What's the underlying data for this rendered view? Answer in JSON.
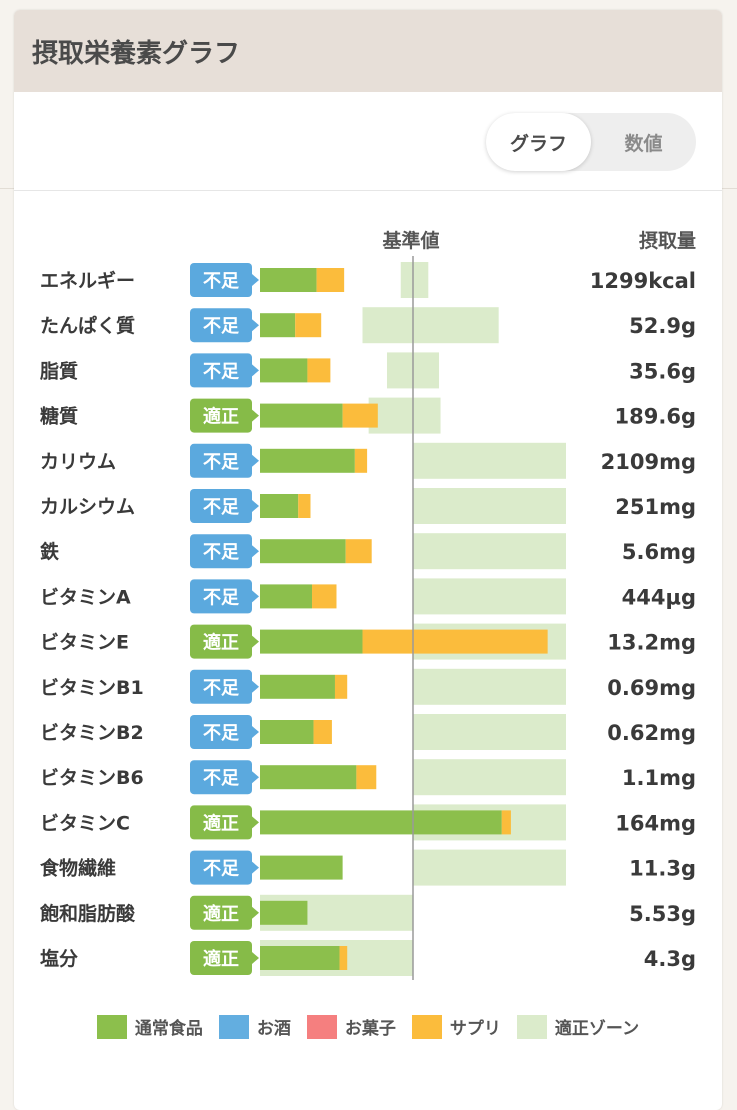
{
  "header": {
    "title": "摂取栄養素グラフ"
  },
  "toggle": {
    "graph_label": "グラフ",
    "value_label": "数値"
  },
  "chart_data": {
    "type": "bar",
    "orientation": "horizontal",
    "stacked": true,
    "reference_label": "基準値",
    "intake_header": "摂取量",
    "units": "percent of reference value",
    "categories": [
      "エネルギー",
      "たんぱく質",
      "脂質",
      "糖質",
      "カリウム",
      "カルシウム",
      "鉄",
      "ビタミンA",
      "ビタミンE",
      "ビタミンB1",
      "ビタミンB2",
      "ビタミンB6",
      "ビタミンC",
      "食物繊維",
      "飽和脂肪酸",
      "塩分"
    ],
    "status": [
      "不足",
      "不足",
      "不足",
      "適正",
      "不足",
      "不足",
      "不足",
      "不足",
      "適正",
      "不足",
      "不足",
      "不足",
      "適正",
      "不足",
      "適正",
      "適正"
    ],
    "intake": [
      "1299kcal",
      "52.9g",
      "35.6g",
      "189.6g",
      "2109mg",
      "251mg",
      "5.6mg",
      "444µg",
      "13.2mg",
      "0.69mg",
      "0.62mg",
      "1.1mg",
      "164mg",
      "11.3g",
      "5.53g",
      "4.3g"
    ],
    "series": [
      {
        "name": "通常食品",
        "values": [
          37,
          23,
          31,
          54,
          62,
          25,
          56,
          34,
          67,
          49,
          35,
          63,
          158,
          54,
          31,
          52
        ]
      },
      {
        "name": "お酒",
        "values": [
          0,
          0,
          0,
          0,
          0,
          0,
          0,
          0,
          0,
          0,
          0,
          0,
          0,
          0,
          0,
          0
        ]
      },
      {
        "name": "お菓子",
        "values": [
          0,
          0,
          0,
          0,
          0,
          0,
          0,
          0,
          0,
          0,
          0,
          0,
          0,
          0,
          0,
          0
        ]
      },
      {
        "name": "サプリ",
        "values": [
          18,
          17,
          15,
          23,
          8,
          8,
          17,
          16,
          121,
          8,
          12,
          13,
          6,
          0,
          0,
          5
        ]
      }
    ],
    "optimal_zone": [
      [
        92,
        110
      ],
      [
        67,
        156
      ],
      [
        83,
        117
      ],
      [
        71,
        118
      ],
      [
        100,
        200
      ],
      [
        100,
        200
      ],
      [
        100,
        200
      ],
      [
        100,
        200
      ],
      [
        100,
        200
      ],
      [
        100,
        200
      ],
      [
        100,
        200
      ],
      [
        100,
        200
      ],
      [
        100,
        200
      ],
      [
        100,
        200
      ],
      [
        0,
        100
      ],
      [
        0,
        100
      ]
    ],
    "xlim": [
      0,
      200
    ],
    "legend": [
      "通常食品",
      "お酒",
      "お菓子",
      "サプリ",
      "適正ゾーン"
    ],
    "legend_position": "bottom",
    "colors": {
      "通常食品": "#8cbf4c",
      "お酒": "#63aee0",
      "お菓子": "#f57f7f",
      "サプリ": "#fbbc3c",
      "適正ゾーン": "#dbebcb",
      "不足": "#5ba9de",
      "適正": "#86bb48",
      "reference_line": "#9a9a9a"
    }
  }
}
